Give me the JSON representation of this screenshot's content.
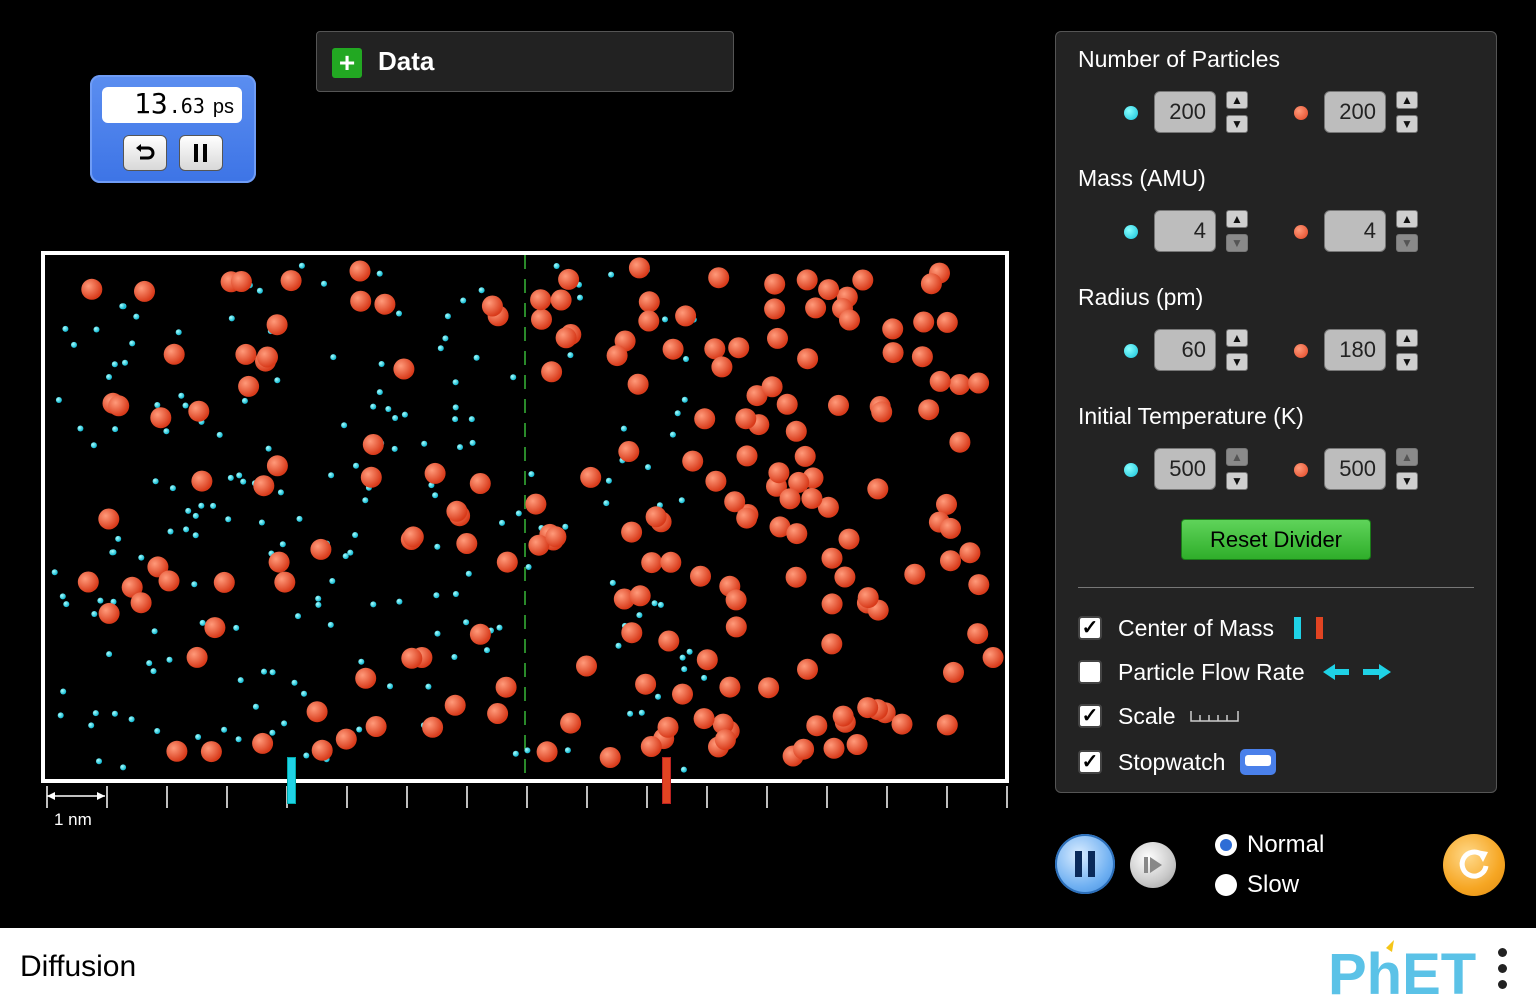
{
  "stopwatch": {
    "time_whole": "13",
    "time_frac": ".63",
    "unit": "ps",
    "restart_icon": "restart-icon",
    "pause_icon": "pause-icon"
  },
  "data_panel": {
    "label": "Data",
    "expand_icon": "plus-icon"
  },
  "scale": {
    "label": "1 nm"
  },
  "controls": {
    "number_of_particles": {
      "title": "Number of Particles",
      "blue": "200",
      "red": "200"
    },
    "mass": {
      "title": "Mass (AMU)",
      "blue": "4",
      "red": "4"
    },
    "radius": {
      "title": "Radius (pm)",
      "blue": "60",
      "red": "180"
    },
    "initial_temperature": {
      "title": "Initial Temperature (K)",
      "blue": "500",
      "red": "500"
    },
    "reset_divider": "Reset Divider",
    "checkboxes": [
      {
        "label": "Center of Mass",
        "checked": true
      },
      {
        "label": "Particle Flow Rate",
        "checked": false
      },
      {
        "label": "Scale",
        "checked": true
      },
      {
        "label": "Stopwatch",
        "checked": true
      }
    ]
  },
  "time_controls": {
    "speed_options": [
      "Normal",
      "Slow"
    ],
    "selected_speed": "Normal"
  },
  "footer": {
    "title": "Diffusion",
    "logo": "PhET"
  },
  "colors": {
    "particle_blue": "#1fd2e6",
    "particle_red": "#e14422",
    "reset_green": "#3cc036",
    "stopwatch_blue": "#4a80ea",
    "reset_all_orange": "#f6a623"
  }
}
